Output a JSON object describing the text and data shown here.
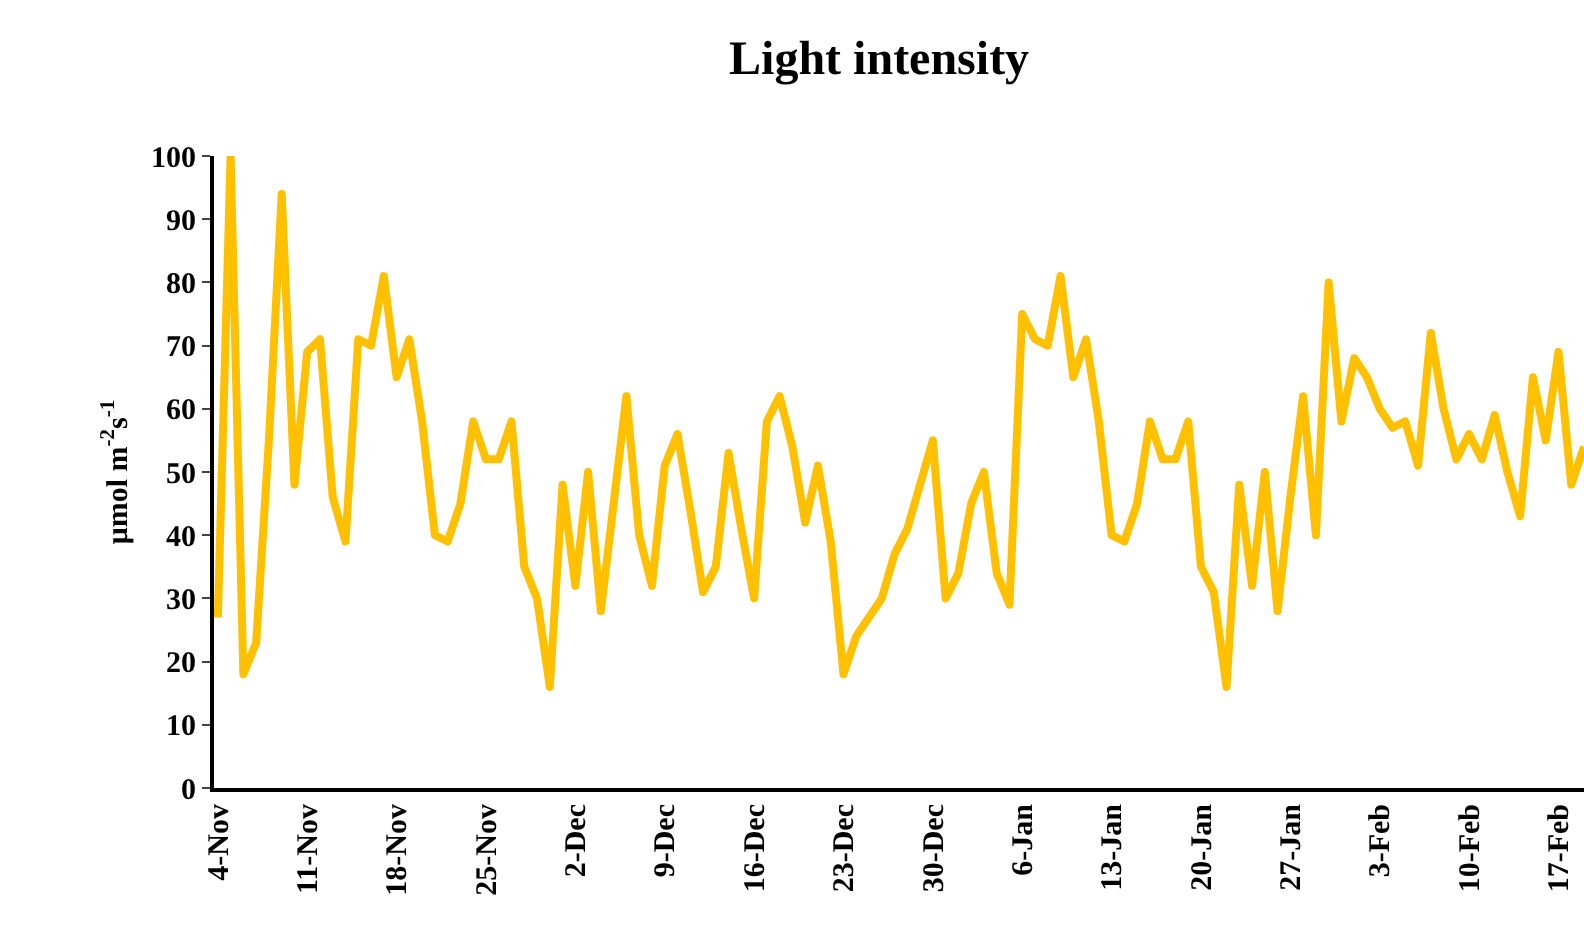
{
  "chart_data": {
    "type": "line",
    "title": "Light intensity",
    "ylabel": "μmol m$^{-2}$s$^{-1}$",
    "categories": [
      "4-Nov",
      null,
      null,
      null,
      null,
      null,
      null,
      "11-Nov",
      null,
      null,
      null,
      null,
      null,
      null,
      "18-Nov",
      null,
      null,
      null,
      null,
      null,
      null,
      "25-Nov",
      null,
      null,
      null,
      null,
      null,
      null,
      "2-Dec",
      null,
      null,
      null,
      null,
      null,
      null,
      "9-Dec",
      null,
      null,
      null,
      null,
      null,
      null,
      "16-Dec",
      null,
      null,
      null,
      null,
      null,
      null,
      "23-Dec",
      null,
      null,
      null,
      null,
      null,
      null,
      "30-Dec",
      null,
      null,
      null,
      null,
      null,
      null,
      "6-Jan",
      null,
      null,
      null,
      null,
      null,
      null,
      "13-Jan",
      null,
      null,
      null,
      null,
      null,
      null,
      "20-Jan",
      null,
      null,
      null,
      null,
      null,
      null,
      "27-Jan",
      null,
      null,
      null,
      null,
      null,
      null,
      "3-Feb",
      null,
      null,
      null,
      null,
      null,
      null,
      "10-Feb",
      null,
      null,
      null,
      null,
      null,
      null,
      "17-Feb",
      null,
      null
    ],
    "series": [
      {
        "color": "#ffc000",
        "values": [
          27,
          100,
          18,
          23,
          55,
          94,
          48,
          69,
          71,
          46,
          39,
          71,
          70,
          81,
          65,
          71,
          58,
          40,
          39,
          45,
          58,
          52,
          52,
          58,
          35,
          30,
          16,
          48,
          32,
          50,
          28,
          45,
          62,
          40,
          32,
          51,
          56,
          44,
          31,
          35,
          53,
          41,
          30,
          58,
          62,
          54,
          42,
          51,
          39,
          18,
          24,
          27,
          30,
          37,
          41,
          48,
          55,
          30,
          34,
          45,
          50,
          34,
          29,
          75,
          71,
          70,
          81,
          65,
          71,
          58,
          40,
          39,
          45,
          58,
          52,
          52,
          58,
          35,
          31,
          16,
          48,
          32,
          50,
          28,
          46,
          62,
          40,
          80,
          58,
          68,
          65,
          60,
          57,
          58,
          51,
          72,
          60,
          52,
          56,
          52,
          59,
          50,
          43,
          65,
          55,
          69,
          48,
          54
        ]
      }
    ],
    "ylim": [
      0,
      100
    ],
    "yticks": [
      0,
      10,
      20,
      30,
      40,
      50,
      60,
      70,
      80,
      90,
      100
    ],
    "marker": "none",
    "line_style": "solid"
  }
}
